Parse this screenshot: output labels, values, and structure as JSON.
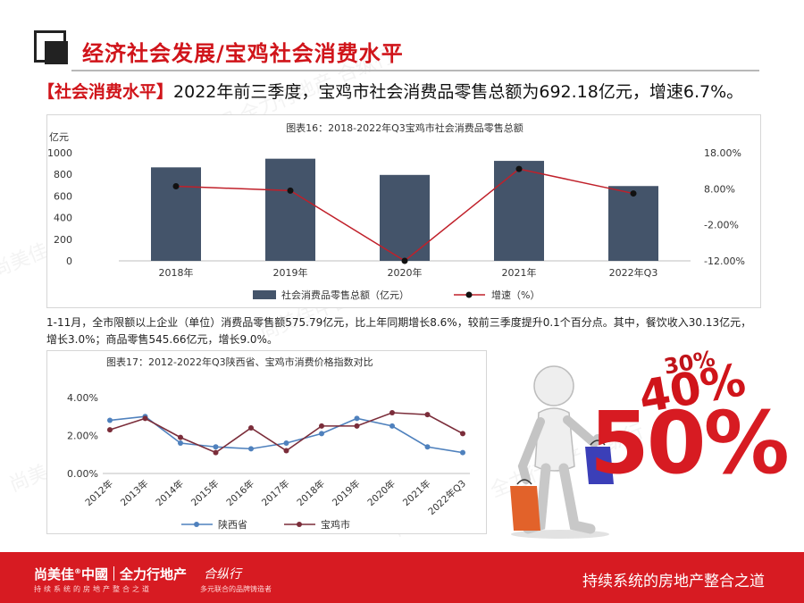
{
  "header": {
    "title": "经济社会发展/宝鸡社会消费水平"
  },
  "headline": {
    "tag": "【社会消费水平】",
    "text": "2022年前三季度，宝鸡市社会消费品零售总额为692.18亿元，增速6.7%。"
  },
  "chart_data": [
    {
      "type": "bar",
      "title": "图表16：2018-2022年Q3宝鸡市社会消费品零售总额",
      "categories": [
        "2018年",
        "2019年",
        "2020年",
        "2021年",
        "2022年Q3"
      ],
      "ylabel": "亿元",
      "ylim": [
        0,
        1000
      ],
      "yticks": [
        "0",
        "200",
        "400",
        "600",
        "800",
        "1000"
      ],
      "y2lim": [
        -12,
        18
      ],
      "y2ticks": [
        "-12.00%",
        "-2.00%",
        "8.00%",
        "18.00%"
      ],
      "series": [
        {
          "name": "社会消费品零售总额（亿元）",
          "kind": "bar",
          "axis": "left",
          "color": "#44546a",
          "values": [
            865,
            945,
            795,
            925,
            692.18
          ]
        },
        {
          "name": "增速（%）",
          "kind": "line",
          "axis": "right",
          "color": "#c0202a",
          "values": [
            8.7,
            7.5,
            -12.0,
            13.5,
            6.7
          ]
        }
      ],
      "legend": "bottom"
    },
    {
      "type": "line",
      "title": "图表17：2012-2022年Q3陕西省、宝鸡市消费价格指数对比",
      "categories": [
        "2012年",
        "2013年",
        "2014年",
        "2015年",
        "2016年",
        "2017年",
        "2018年",
        "2019年",
        "2020年",
        "2021年",
        "2022年Q3"
      ],
      "ylim": [
        0,
        4
      ],
      "yticks": [
        "0.00%",
        "2.00%",
        "4.00%"
      ],
      "series": [
        {
          "name": "陕西省",
          "color": "#4f81bd",
          "values": [
            2.8,
            3.0,
            1.6,
            1.4,
            1.3,
            1.6,
            2.1,
            2.9,
            2.5,
            1.4,
            1.1
          ]
        },
        {
          "name": "宝鸡市",
          "color": "#7b2d3a",
          "values": [
            2.3,
            2.9,
            1.9,
            1.1,
            2.4,
            1.2,
            2.5,
            2.5,
            3.2,
            3.1,
            2.1
          ]
        }
      ],
      "legend": "bottom"
    }
  ],
  "note": "1-11月，全市限额以上企业（单位）消费品零售额575.79亿元，比上年同期增长8.6%，较前三季度提升0.1个百分点。其中，餐饮收入30.13亿元，增长3.0%；商品零售545.66亿元，增长9.0%。",
  "illustration": {
    "percents": [
      "30%",
      "40%",
      "50%"
    ],
    "color": "#d0141a"
  },
  "watermark": "尚美佳中國 全力行地产 合纵行",
  "footer": {
    "brand1": "尚美佳",
    "brand1_mark": "®",
    "brand1_b": "中國",
    "brand1_c": "全力行地产",
    "sub1": "持续系统的房地产整合之道",
    "brand2": "合纵行",
    "sub2": "多元联合的品牌铸造者",
    "slogan": "持续系统的房地产整合之道",
    "bg_color": "#d71b22"
  }
}
